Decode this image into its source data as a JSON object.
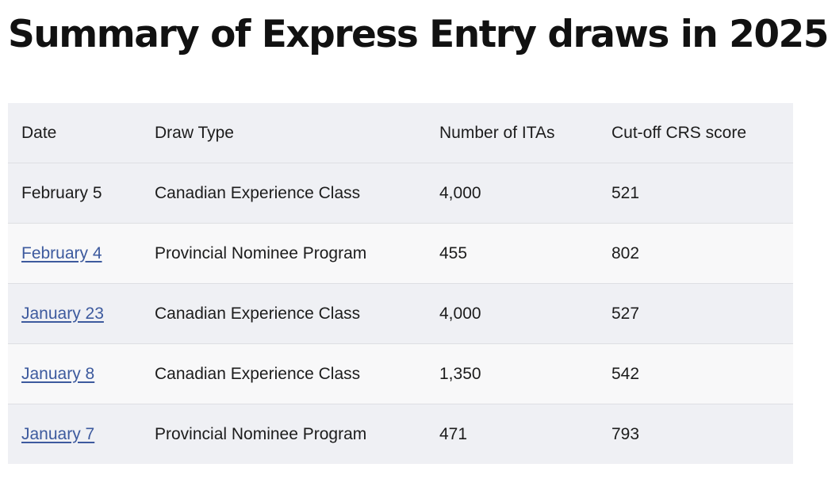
{
  "title": "Summary of Express Entry draws in 2025",
  "table": {
    "headers": [
      "Date",
      "Draw Type",
      "Number of ITAs",
      "Cut-off CRS score"
    ],
    "rows": [
      {
        "date": "February 5",
        "date_link": false,
        "draw_type": "Canadian Experience Class",
        "itas": "4,000",
        "crs": "521"
      },
      {
        "date": "February 4",
        "date_link": true,
        "draw_type": "Provincial Nominee Program",
        "itas": "455",
        "crs": "802"
      },
      {
        "date": "January 23",
        "date_link": true,
        "draw_type": "Canadian Experience Class",
        "itas": "4,000",
        "crs": "527"
      },
      {
        "date": "January 8",
        "date_link": true,
        "draw_type": "Canadian Experience Class",
        "itas": "1,350",
        "crs": "542"
      },
      {
        "date": "January 7",
        "date_link": true,
        "draw_type": "Provincial Nominee Program",
        "itas": "471",
        "crs": "793"
      }
    ]
  },
  "colors": {
    "link": "#3d5a9e",
    "row_odd": "#eff0f4",
    "row_even": "#f8f8f9"
  }
}
